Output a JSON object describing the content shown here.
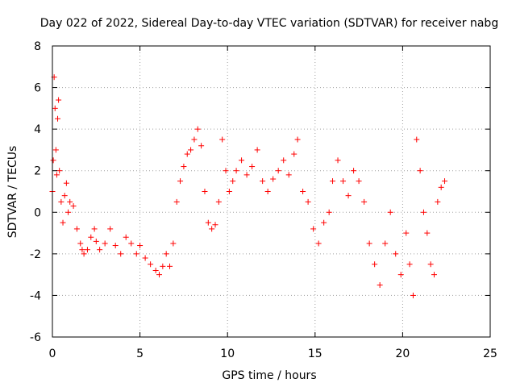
{
  "chart_data": {
    "type": "scatter",
    "title": "Day 022 of 2022, Sidereal Day-to-day VTEC variation (SDTVAR) for receiver nabg",
    "xlabel": "GPS time / hours",
    "ylabel": "SDTVAR / TECUs",
    "xlim": [
      0,
      25
    ],
    "ylim": [
      -6,
      8
    ],
    "xticks": [
      0,
      5,
      10,
      15,
      20,
      25
    ],
    "yticks": [
      -6,
      -4,
      -2,
      0,
      2,
      4,
      6,
      8
    ],
    "grid": true,
    "marker": "+",
    "series_color": "#ff0000",
    "series": [
      {
        "name": "SDTVAR",
        "x": [
          0.0,
          0.05,
          0.1,
          0.15,
          0.2,
          0.25,
          0.3,
          0.35,
          0.4,
          0.5,
          0.6,
          0.7,
          0.8,
          0.9,
          1.0,
          1.2,
          1.4,
          1.6,
          1.7,
          1.8,
          2.0,
          2.2,
          2.4,
          2.5,
          2.7,
          3.0,
          3.3,
          3.6,
          3.9,
          4.2,
          4.5,
          4.8,
          5.0,
          5.3,
          5.6,
          5.9,
          6.1,
          6.3,
          6.5,
          6.7,
          6.9,
          7.1,
          7.3,
          7.5,
          7.7,
          7.9,
          8.1,
          8.3,
          8.5,
          8.7,
          8.9,
          9.1,
          9.3,
          9.5,
          9.7,
          9.9,
          10.1,
          10.3,
          10.5,
          10.8,
          11.1,
          11.4,
          11.7,
          12.0,
          12.3,
          12.6,
          12.9,
          13.2,
          13.5,
          13.8,
          14.0,
          14.3,
          14.6,
          14.9,
          15.2,
          15.5,
          15.8,
          16.0,
          16.3,
          16.6,
          16.9,
          17.2,
          17.5,
          17.8,
          18.1,
          18.4,
          18.7,
          19.0,
          19.3,
          19.6,
          19.9,
          20.2,
          20.4,
          20.6,
          20.8,
          21.0,
          21.2,
          21.4,
          21.6,
          21.8,
          22.0,
          22.2,
          22.4
        ],
        "y": [
          1.0,
          2.5,
          6.5,
          5.0,
          3.0,
          1.8,
          4.5,
          5.4,
          2.0,
          0.5,
          -0.5,
          0.8,
          1.4,
          0.0,
          0.5,
          0.3,
          -0.8,
          -1.5,
          -1.8,
          -2.0,
          -1.8,
          -1.2,
          -0.8,
          -1.4,
          -1.8,
          -1.5,
          -0.8,
          -1.6,
          -2.0,
          -1.2,
          -1.5,
          -2.0,
          -1.6,
          -2.2,
          -2.5,
          -2.8,
          -3.0,
          -2.6,
          -2.0,
          -2.6,
          -1.5,
          0.5,
          1.5,
          2.2,
          2.8,
          3.0,
          3.5,
          4.0,
          3.2,
          1.0,
          -0.5,
          -0.8,
          -0.6,
          0.5,
          3.5,
          2.0,
          1.0,
          1.5,
          2.0,
          2.5,
          1.8,
          2.2,
          3.0,
          1.5,
          1.0,
          1.6,
          2.0,
          2.5,
          1.8,
          2.8,
          3.5,
          1.0,
          0.5,
          -0.8,
          -1.5,
          -0.5,
          0.0,
          1.5,
          2.5,
          1.5,
          0.8,
          2.0,
          1.5,
          0.5,
          -1.5,
          -2.5,
          -3.5,
          -1.5,
          0.0,
          -2.0,
          -3.0,
          -1.0,
          -2.5,
          -4.0,
          3.5,
          2.0,
          0.0,
          -1.0,
          -2.5,
          -3.0,
          0.5,
          1.2,
          1.5
        ]
      }
    ]
  }
}
